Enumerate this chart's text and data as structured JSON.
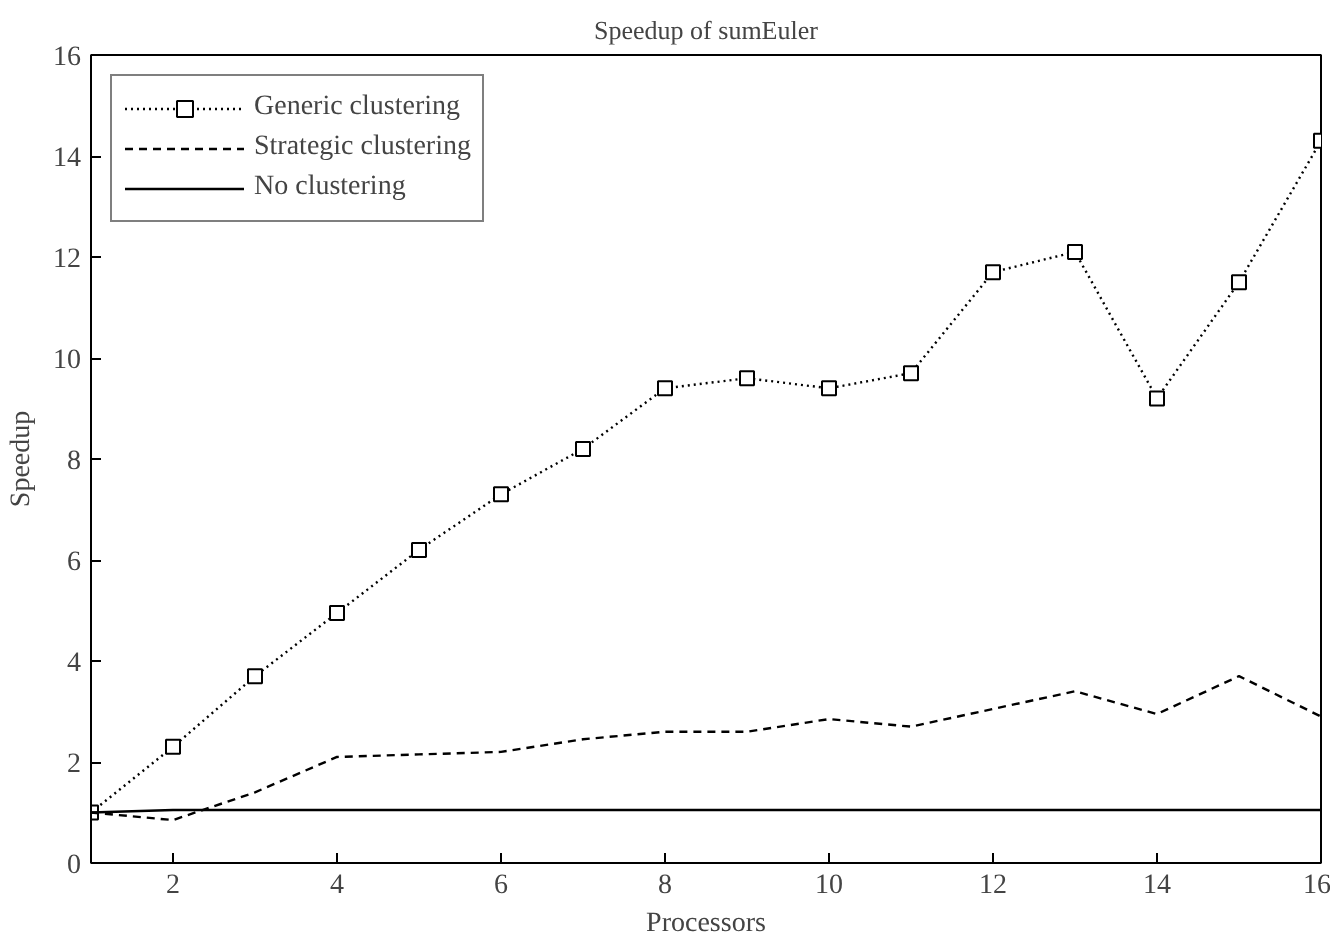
{
  "chart_data": {
    "type": "line",
    "title": "Speedup of sumEuler",
    "xlabel": "Processors",
    "ylabel": "Speedup",
    "x": [
      1,
      2,
      3,
      4,
      5,
      6,
      7,
      8,
      9,
      10,
      11,
      12,
      13,
      14,
      15,
      16
    ],
    "xlim": [
      1,
      16
    ],
    "xticks": [
      2,
      4,
      6,
      8,
      10,
      12,
      14,
      16
    ],
    "ylim": [
      0,
      16
    ],
    "yticks": [
      0,
      2,
      4,
      6,
      8,
      10,
      12,
      14,
      16
    ],
    "grid": false,
    "legend": "top left",
    "series": [
      {
        "name": "Generic clustering",
        "color": "#000000",
        "marker": "square",
        "line_style": "dotted",
        "values": [
          1.0,
          2.3,
          3.7,
          4.95,
          6.2,
          7.3,
          8.2,
          9.4,
          9.6,
          9.4,
          9.7,
          11.7,
          12.1,
          9.2,
          11.5,
          14.3
        ]
      },
      {
        "name": "Strategic clustering",
        "color": "#000000",
        "marker": "none",
        "line_style": "dashed",
        "values": [
          1.0,
          0.85,
          1.4,
          2.1,
          2.15,
          2.2,
          2.45,
          2.6,
          2.6,
          2.85,
          2.7,
          3.05,
          3.4,
          2.95,
          3.7,
          2.9
        ]
      },
      {
        "name": "No clustering",
        "color": "#000000",
        "marker": "none",
        "line_style": "solid",
        "values": [
          1.0,
          1.05,
          1.05,
          1.05,
          1.05,
          1.05,
          1.05,
          1.05,
          1.05,
          1.05,
          1.05,
          1.05,
          1.05,
          1.05,
          1.05,
          1.05
        ]
      }
    ]
  }
}
